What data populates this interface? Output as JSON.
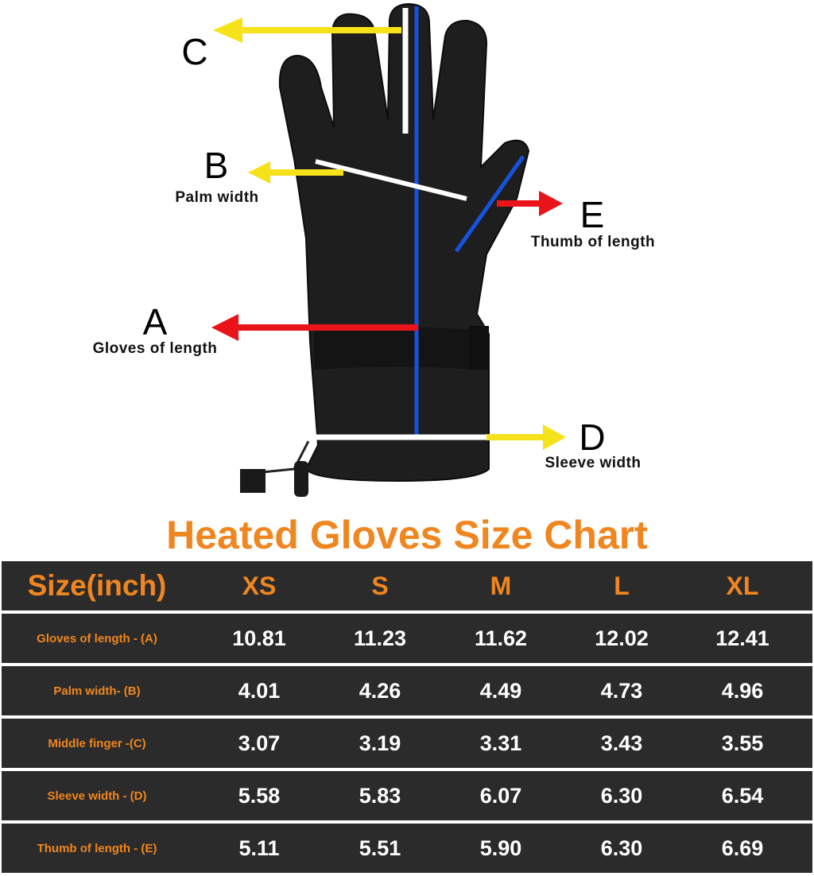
{
  "colors": {
    "accent": "#f0861f",
    "table_bg": "#2b2b2b",
    "yellow_arrow": "#f6e21a",
    "red_arrow": "#e8141a",
    "blue_line": "#1652e0"
  },
  "diagram": {
    "letters": {
      "A": "A",
      "B": "B",
      "C": "C",
      "D": "D",
      "E": "E"
    },
    "labels": {
      "palm": "Palm width",
      "thumb": "Thumb of length",
      "gloves": "Gloves of length",
      "sleeve": "Sleeve width"
    }
  },
  "title": "Heated Gloves Size Chart",
  "table": {
    "header": [
      "Size(inch)",
      "XS",
      "S",
      "M",
      "L",
      "XL"
    ],
    "rows": [
      {
        "label": "Gloves of length - (A)",
        "values": [
          "10.81",
          "11.23",
          "11.62",
          "12.02",
          "12.41"
        ]
      },
      {
        "label": "Palm width- (B)",
        "values": [
          "4.01",
          "4.26",
          "4.49",
          "4.73",
          "4.96"
        ]
      },
      {
        "label": "Middle finger -(C)",
        "values": [
          "3.07",
          "3.19",
          "3.31",
          "3.43",
          "3.55"
        ]
      },
      {
        "label": "Sleeve width - (D)",
        "values": [
          "5.58",
          "5.83",
          "6.07",
          "6.30",
          "6.54"
        ]
      },
      {
        "label": "Thumb of length - (E)",
        "values": [
          "5.11",
          "5.51",
          "5.90",
          "6.30",
          "6.69"
        ]
      }
    ]
  }
}
